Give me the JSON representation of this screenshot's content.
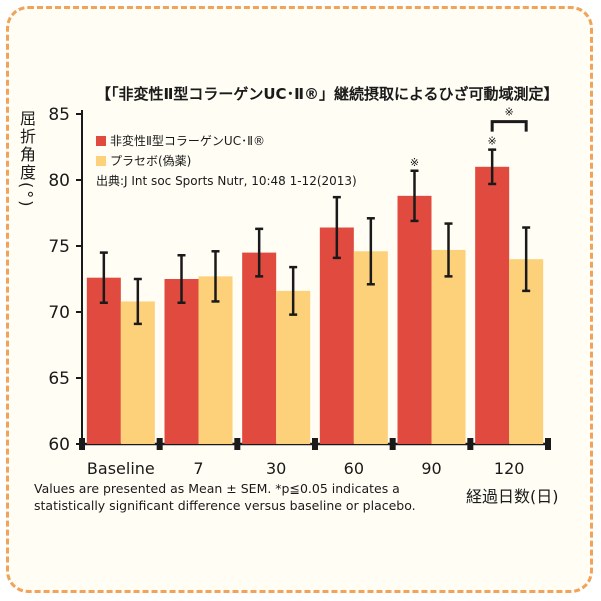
{
  "chart_data": {
    "type": "bar",
    "title": "【「非変性Ⅱ型コラーゲンUC･Ⅱ®」継続摂取によるひざ可動域測定】",
    "ylabel": "屈折角度(°)",
    "xlabel": "経過日数(日)",
    "categories": [
      "Baseline",
      "7",
      "30",
      "60",
      "90",
      "120"
    ],
    "ylim": [
      60,
      85
    ],
    "yticks": [
      60,
      65,
      70,
      75,
      80,
      85
    ],
    "series": [
      {
        "name": "非変性Ⅱ型コラーゲンUC･Ⅱ®",
        "color": "#e04a3f",
        "values": [
          72.6,
          72.5,
          74.5,
          76.4,
          78.8,
          81.0
        ],
        "errors": [
          1.9,
          1.8,
          1.8,
          2.3,
          1.9,
          1.3
        ]
      },
      {
        "name": "プラセボ(偽薬)",
        "color": "#fdd07a",
        "values": [
          70.8,
          72.7,
          71.6,
          74.6,
          74.7,
          74.0
        ],
        "errors": [
          1.7,
          1.9,
          1.8,
          2.5,
          2.0,
          2.4
        ]
      }
    ],
    "significance": [
      {
        "category_index": 4,
        "series_index": 0,
        "mark": "※"
      },
      {
        "category_index": 5,
        "series_index": 0,
        "mark": "※"
      },
      {
        "category_index": 5,
        "bracket": true,
        "mark": "※"
      }
    ],
    "grid": false,
    "legend_position": "top-left"
  },
  "source": "出典:J Int soc Sports Nutr, 10:48 1-12(2013)",
  "footnote": "Values are presented as Mean ± SEM. *p≦0.05 indicates a statistically significant difference versus baseline or placebo."
}
